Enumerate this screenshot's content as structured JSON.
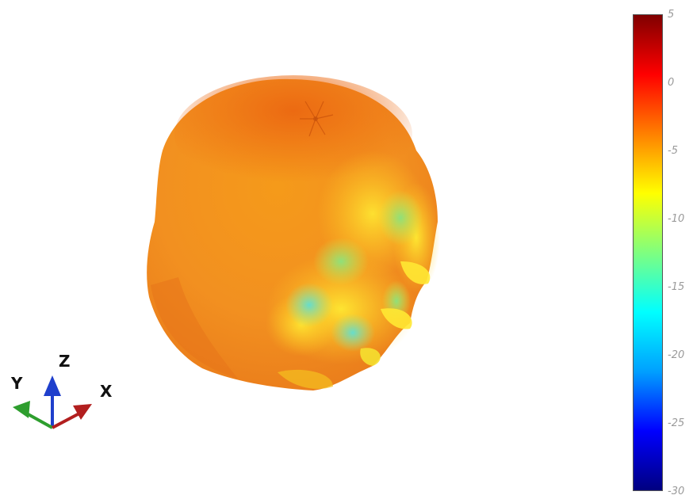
{
  "colorbar": {
    "min": -30,
    "max": 5,
    "ticks": [
      "5",
      "0",
      "-5",
      "-10",
      "-15",
      "-20",
      "-25",
      "-30"
    ],
    "colormap": [
      "#000080",
      "#0000ff",
      "#00a0ff",
      "#00ffff",
      "#7fff7f",
      "#ffff00",
      "#ff8000",
      "#ff0000",
      "#800000"
    ]
  },
  "triad": {
    "x_label": "X",
    "y_label": "Y",
    "z_label": "Z",
    "x_color": "#b21f1f",
    "y_color": "#2e9e2e",
    "z_color": "#1f3fcc"
  }
}
